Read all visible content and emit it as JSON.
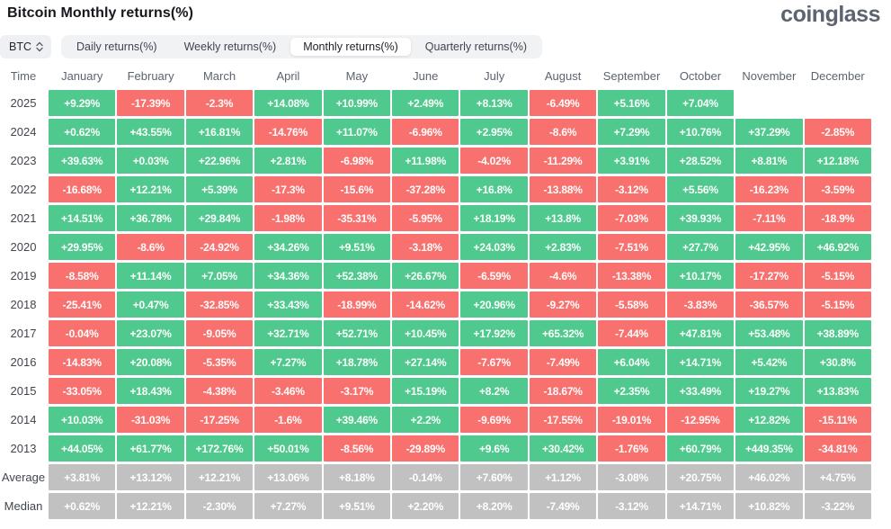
{
  "header": {
    "title": "Bitcoin Monthly returns(%)",
    "logo": "coinglass"
  },
  "controls": {
    "symbol": "BTC",
    "tabs": [
      {
        "label": "Daily returns(%)",
        "active": false
      },
      {
        "label": "Weekly returns(%)",
        "active": false
      },
      {
        "label": "Monthly returns(%)",
        "active": true
      },
      {
        "label": "Quarterly returns(%)",
        "active": false
      }
    ]
  },
  "colors": {
    "green": "#4FC98D",
    "red": "#F8716E",
    "gray": "#C1C1C1"
  },
  "table": {
    "time_header": "Time",
    "months": [
      "January",
      "February",
      "March",
      "April",
      "May",
      "June",
      "July",
      "August",
      "September",
      "October",
      "November",
      "December"
    ],
    "rows": [
      {
        "label": "2025",
        "type": "year",
        "cells": [
          "+9.29%",
          "-17.39%",
          "-2.3%",
          "+14.08%",
          "+10.99%",
          "+2.49%",
          "+8.13%",
          "-6.49%",
          "+5.16%",
          "+7.04%",
          "",
          ""
        ]
      },
      {
        "label": "2024",
        "type": "year",
        "cells": [
          "+0.62%",
          "+43.55%",
          "+16.81%",
          "-14.76%",
          "+11.07%",
          "-6.96%",
          "+2.95%",
          "-8.6%",
          "+7.29%",
          "+10.76%",
          "+37.29%",
          "-2.85%"
        ]
      },
      {
        "label": "2023",
        "type": "year",
        "cells": [
          "+39.63%",
          "+0.03%",
          "+22.96%",
          "+2.81%",
          "-6.98%",
          "+11.98%",
          "-4.02%",
          "-11.29%",
          "+3.91%",
          "+28.52%",
          "+8.81%",
          "+12.18%"
        ]
      },
      {
        "label": "2022",
        "type": "year",
        "cells": [
          "-16.68%",
          "+12.21%",
          "+5.39%",
          "-17.3%",
          "-15.6%",
          "-37.28%",
          "+16.8%",
          "-13.88%",
          "-3.12%",
          "+5.56%",
          "-16.23%",
          "-3.59%"
        ]
      },
      {
        "label": "2021",
        "type": "year",
        "cells": [
          "+14.51%",
          "+36.78%",
          "+29.84%",
          "-1.98%",
          "-35.31%",
          "-5.95%",
          "+18.19%",
          "+13.8%",
          "-7.03%",
          "+39.93%",
          "-7.11%",
          "-18.9%"
        ]
      },
      {
        "label": "2020",
        "type": "year",
        "cells": [
          "+29.95%",
          "-8.6%",
          "-24.92%",
          "+34.26%",
          "+9.51%",
          "-3.18%",
          "+24.03%",
          "+2.83%",
          "-7.51%",
          "+27.7%",
          "+42.95%",
          "+46.92%"
        ]
      },
      {
        "label": "2019",
        "type": "year",
        "cells": [
          "-8.58%",
          "+11.14%",
          "+7.05%",
          "+34.36%",
          "+52.38%",
          "+26.67%",
          "-6.59%",
          "-4.6%",
          "-13.38%",
          "+10.17%",
          "-17.27%",
          "-5.15%"
        ]
      },
      {
        "label": "2018",
        "type": "year",
        "cells": [
          "-25.41%",
          "+0.47%",
          "-32.85%",
          "+33.43%",
          "-18.99%",
          "-14.62%",
          "+20.96%",
          "-9.27%",
          "-5.58%",
          "-3.83%",
          "-36.57%",
          "-5.15%"
        ]
      },
      {
        "label": "2017",
        "type": "year",
        "cells": [
          "-0.04%",
          "+23.07%",
          "-9.05%",
          "+32.71%",
          "+52.71%",
          "+10.45%",
          "+17.92%",
          "+65.32%",
          "-7.44%",
          "+47.81%",
          "+53.48%",
          "+38.89%"
        ]
      },
      {
        "label": "2016",
        "type": "year",
        "cells": [
          "-14.83%",
          "+20.08%",
          "-5.35%",
          "+7.27%",
          "+18.78%",
          "+27.14%",
          "-7.67%",
          "-7.49%",
          "+6.04%",
          "+14.71%",
          "+5.42%",
          "+30.8%"
        ]
      },
      {
        "label": "2015",
        "type": "year",
        "cells": [
          "-33.05%",
          "+18.43%",
          "-4.38%",
          "-3.46%",
          "-3.17%",
          "+15.19%",
          "+8.2%",
          "-18.67%",
          "+2.35%",
          "+33.49%",
          "+19.27%",
          "+13.83%"
        ]
      },
      {
        "label": "2014",
        "type": "year",
        "cells": [
          "+10.03%",
          "-31.03%",
          "-17.25%",
          "-1.6%",
          "+39.46%",
          "+2.2%",
          "-9.69%",
          "-17.55%",
          "-19.01%",
          "-12.95%",
          "+12.82%",
          "-15.11%"
        ]
      },
      {
        "label": "2013",
        "type": "year",
        "cells": [
          "+44.05%",
          "+61.77%",
          "+172.76%",
          "+50.01%",
          "-8.56%",
          "-29.89%",
          "+9.6%",
          "+30.42%",
          "-1.76%",
          "+60.79%",
          "+449.35%",
          "-34.81%"
        ]
      },
      {
        "label": "Average",
        "type": "stat",
        "cells": [
          "+3.81%",
          "+13.12%",
          "+12.21%",
          "+13.06%",
          "+8.18%",
          "-0.14%",
          "+7.60%",
          "+1.12%",
          "-3.08%",
          "+20.75%",
          "+46.02%",
          "+4.75%"
        ]
      },
      {
        "label": "Median",
        "type": "stat",
        "cells": [
          "+0.62%",
          "+12.21%",
          "-2.30%",
          "+7.27%",
          "+9.51%",
          "+2.20%",
          "+8.20%",
          "-7.49%",
          "-3.12%",
          "+14.71%",
          "+10.82%",
          "-3.22%"
        ]
      }
    ]
  }
}
